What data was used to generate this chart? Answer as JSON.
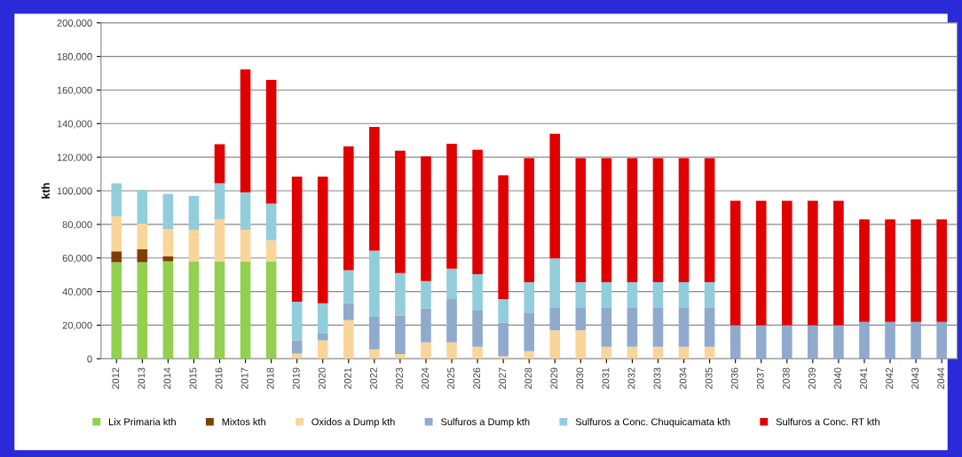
{
  "chart_data": {
    "type": "bar",
    "stacked": true,
    "ylabel": "kth",
    "categories": [
      "2012",
      "2013",
      "2014",
      "2015",
      "2016",
      "2017",
      "2018",
      "2019",
      "2020",
      "2021",
      "2022",
      "2023",
      "2024",
      "2025",
      "2026",
      "2027",
      "2028",
      "2029",
      "2030",
      "2031",
      "2032",
      "2033",
      "2034",
      "2035",
      "2036",
      "2037",
      "2038",
      "2039",
      "2040",
      "2041",
      "2042",
      "2043",
      "2044"
    ],
    "series": [
      {
        "name": "Lix Primaria kth",
        "color": "#92d050",
        "values": [
          57500,
          57500,
          58000,
          58000,
          58000,
          58000,
          58000,
          0,
          0,
          0,
          0,
          0,
          0,
          0,
          0,
          0,
          0,
          0,
          0,
          0,
          0,
          0,
          0,
          0,
          0,
          0,
          0,
          0,
          0,
          0,
          0,
          0,
          0
        ]
      },
      {
        "name": "Mixtos kth",
        "color": "#7f3f00",
        "values": [
          6500,
          7700,
          3000,
          0,
          0,
          0,
          0,
          0,
          0,
          0,
          0,
          0,
          0,
          0,
          0,
          0,
          0,
          0,
          0,
          0,
          0,
          0,
          0,
          0,
          0,
          0,
          0,
          0,
          0,
          0,
          0,
          0,
          0
        ]
      },
      {
        "name": "Oxidos a Dump kth",
        "color": "#fad59a",
        "values": [
          20800,
          15200,
          16300,
          18800,
          25000,
          18800,
          12500,
          3000,
          11000,
          23000,
          5500,
          2800,
          9800,
          9800,
          7100,
          1500,
          4500,
          16900,
          16900,
          7100,
          7100,
          7100,
          7100,
          7100,
          0,
          0,
          0,
          0,
          0,
          0,
          0,
          0,
          0
        ]
      },
      {
        "name": "Sulfuros a Dump kth",
        "color": "#8faacc",
        "values": [
          0,
          0,
          0,
          0,
          0,
          0,
          0,
          8000,
          4000,
          10000,
          19500,
          23000,
          20000,
          25800,
          22000,
          20000,
          23000,
          13400,
          13400,
          23200,
          23200,
          23200,
          23200,
          23200,
          20000,
          20000,
          20000,
          20000,
          20000,
          22000,
          22000,
          22000,
          22000
        ]
      },
      {
        "name": "Sulfuros a Conc. Chuquicamata kth",
        "color": "#92cddc",
        "values": [
          19700,
          20000,
          20900,
          20200,
          21500,
          22300,
          21800,
          23000,
          18000,
          19700,
          39300,
          25200,
          16500,
          18000,
          21300,
          14100,
          18100,
          29400,
          15300,
          15300,
          15300,
          15300,
          15300,
          15300,
          0,
          0,
          0,
          0,
          0,
          0,
          0,
          0,
          0
        ]
      },
      {
        "name": "Sulfuros a Conc. RT kth",
        "color": "#e00000",
        "values": [
          0,
          0,
          0,
          0,
          23200,
          73200,
          73800,
          74500,
          75500,
          73700,
          73700,
          72900,
          74200,
          74400,
          74000,
          73700,
          73800,
          74200,
          73800,
          73800,
          73800,
          73800,
          73800,
          73800,
          74000,
          74000,
          74000,
          74000,
          74000,
          61000,
          61000,
          61000,
          61000
        ]
      }
    ],
    "ylim": [
      0,
      200000
    ],
    "yticks": [
      0,
      {
        "value": 20000,
        "label": "20,000"
      },
      {
        "value": 40000,
        "label": "40,000"
      },
      {
        "value": 60000,
        "label": "60,000"
      },
      {
        "value": 80000,
        "label": "80,000"
      },
      {
        "value": 100000,
        "label": "100,000"
      },
      {
        "value": 120000,
        "label": "120,000"
      },
      {
        "value": 140000,
        "label": "140,000"
      },
      {
        "value": 160000,
        "label": "160,000"
      },
      {
        "value": 180000,
        "label": "180,000"
      },
      {
        "value": 200000,
        "label": "200,000"
      }
    ],
    "grid": "y",
    "legend": "bottom"
  }
}
